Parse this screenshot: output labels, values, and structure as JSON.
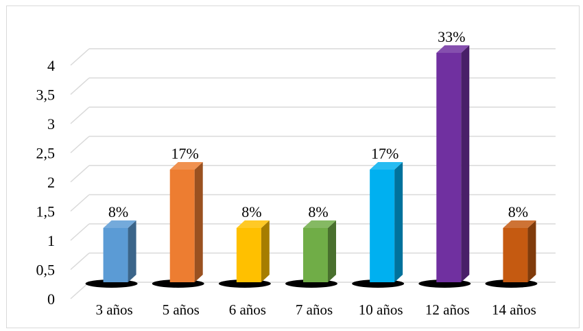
{
  "chart_data": {
    "type": "bar",
    "categories": [
      "3 años",
      "5 años",
      "6 años",
      "7 años",
      "10 años",
      "12 años",
      "14 años"
    ],
    "values": [
      1,
      2,
      1,
      1,
      2,
      4,
      1
    ],
    "data_labels": [
      "8%",
      "17%",
      "8%",
      "8%",
      "17%",
      "33%",
      "8%"
    ],
    "yticks": [
      "0",
      "0,5",
      "1",
      "1,5",
      "2",
      "2,5",
      "3",
      "3,5",
      "4"
    ],
    "ylim": [
      0,
      4
    ],
    "grid": true,
    "legend": "none",
    "style": "3d-column",
    "colors": [
      "#5b9bd5",
      "#ed7d31",
      "#ffc000",
      "#70ad47",
      "#00b0f0",
      "#7030a0",
      "#c55a11"
    ],
    "title": "",
    "xlabel": "",
    "ylabel": ""
  }
}
